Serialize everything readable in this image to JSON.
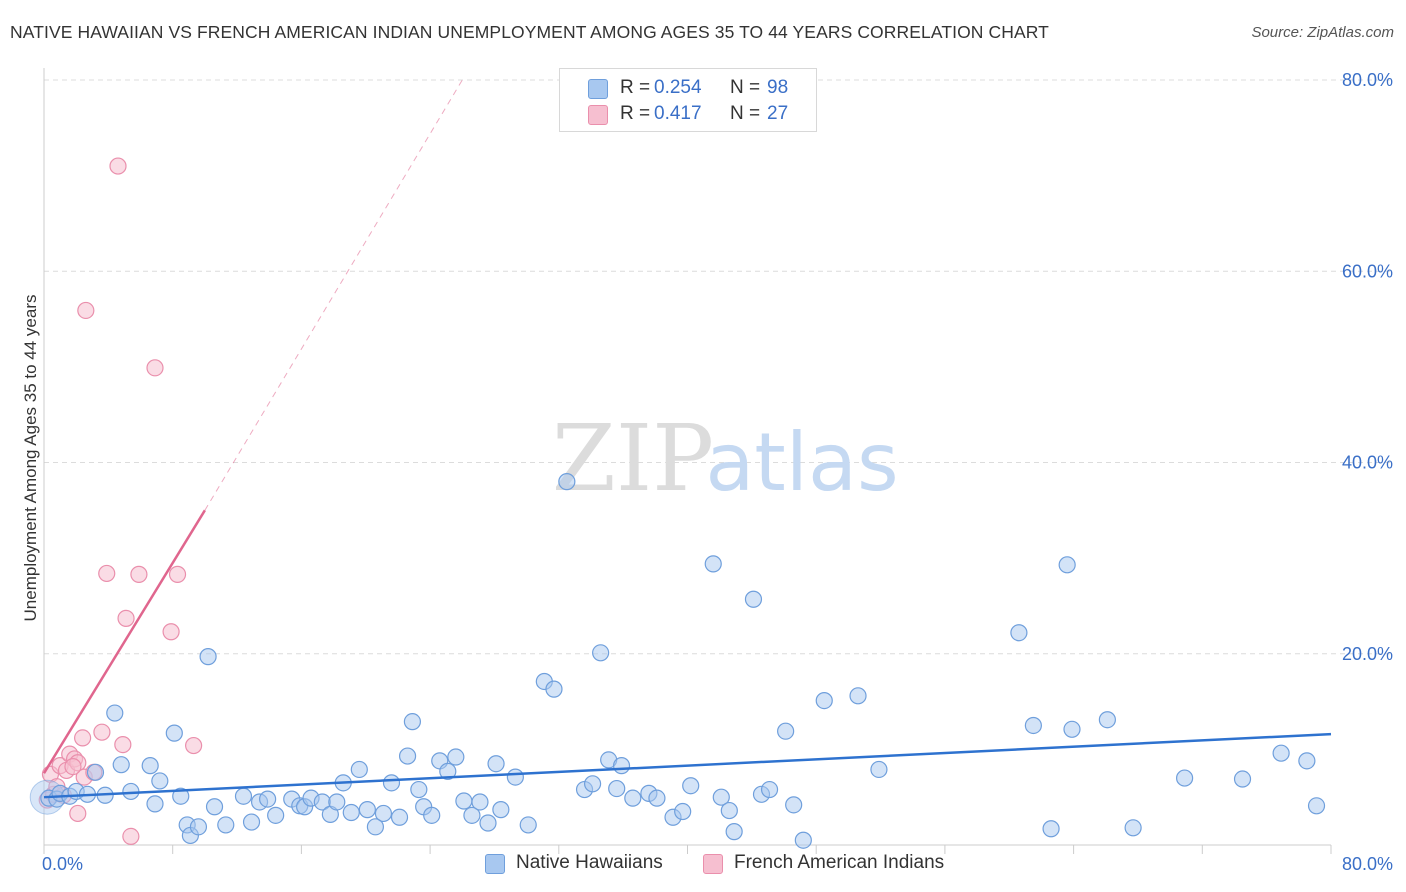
{
  "title": "NATIVE HAWAIIAN VS FRENCH AMERICAN INDIAN UNEMPLOYMENT AMONG AGES 35 TO 44 YEARS CORRELATION CHART",
  "source": "Source: ZipAtlas.com",
  "watermark": {
    "zip": "ZIP",
    "atlas": "atlas"
  },
  "legend": {
    "rows": [
      {
        "r_label": "R =",
        "r_value": "0.254",
        "n_label": "N =",
        "n_value": "98"
      },
      {
        "r_label": "R =",
        "r_value": "0.417",
        "n_label": "N =",
        "n_value": "27"
      }
    ]
  },
  "bottom_legend": {
    "series1": "Native Hawaiians",
    "series2": "French American Indians"
  },
  "colors": {
    "blue_fill": "#a8c8f0",
    "blue_stroke": "#6f9fdc",
    "blue_line": "#2e72cf",
    "pink_fill": "#f6bfd0",
    "pink_stroke": "#ea8fac",
    "pink_line": "#e0668e",
    "tick_label": "#3a6fc7",
    "grid": "#dcdcdc"
  },
  "chart_data": {
    "type": "scatter",
    "title": "NATIVE HAWAIIAN VS FRENCH AMERICAN INDIAN UNEMPLOYMENT AMONG AGES 35 TO 44 YEARS CORRELATION CHART",
    "xlabel": "",
    "ylabel": "Unemployment Among Ages 35 to 44 years",
    "xlim": [
      0,
      80
    ],
    "ylim": [
      0,
      80
    ],
    "x_tick_labels": [
      "0.0%",
      "80.0%"
    ],
    "y_ticks": [
      20,
      40,
      60,
      80
    ],
    "y_tick_labels": [
      "20.0%",
      "40.0%",
      "60.0%",
      "80.0%"
    ],
    "series": [
      {
        "name": "Native Hawaiians",
        "r": 0.254,
        "n": 98,
        "trend": {
          "x0": 0,
          "y0": 5.0,
          "x1": 80,
          "y1": 11.6
        },
        "points": [
          [
            0.3,
            4.9
          ],
          [
            0.8,
            4.8
          ],
          [
            1.0,
            5.4
          ],
          [
            1.6,
            5.1
          ],
          [
            2.0,
            5.6
          ],
          [
            2.7,
            5.3
          ],
          [
            3.2,
            7.6
          ],
          [
            3.8,
            5.2
          ],
          [
            4.4,
            13.8
          ],
          [
            4.8,
            8.4
          ],
          [
            5.4,
            5.6
          ],
          [
            6.6,
            8.3
          ],
          [
            6.9,
            4.3
          ],
          [
            7.2,
            6.7
          ],
          [
            8.1,
            11.7
          ],
          [
            8.5,
            5.1
          ],
          [
            8.9,
            2.1
          ],
          [
            9.1,
            1.0
          ],
          [
            9.6,
            1.9
          ],
          [
            10.2,
            19.7
          ],
          [
            10.6,
            4.0
          ],
          [
            11.3,
            2.1
          ],
          [
            12.4,
            5.1
          ],
          [
            12.9,
            2.4
          ],
          [
            13.4,
            4.5
          ],
          [
            13.9,
            4.8
          ],
          [
            14.4,
            3.1
          ],
          [
            15.4,
            4.8
          ],
          [
            15.9,
            4.1
          ],
          [
            16.2,
            4.0
          ],
          [
            16.6,
            4.9
          ],
          [
            17.3,
            4.5
          ],
          [
            17.8,
            3.2
          ],
          [
            18.2,
            4.5
          ],
          [
            18.6,
            6.5
          ],
          [
            19.1,
            3.4
          ],
          [
            19.6,
            7.9
          ],
          [
            20.1,
            3.7
          ],
          [
            20.6,
            1.9
          ],
          [
            21.1,
            3.3
          ],
          [
            21.6,
            6.5
          ],
          [
            22.1,
            2.9
          ],
          [
            22.6,
            9.3
          ],
          [
            22.9,
            12.9
          ],
          [
            23.3,
            5.8
          ],
          [
            23.6,
            4.0
          ],
          [
            24.1,
            3.1
          ],
          [
            24.6,
            8.8
          ],
          [
            25.1,
            7.7
          ],
          [
            25.6,
            9.2
          ],
          [
            26.1,
            4.6
          ],
          [
            26.6,
            3.1
          ],
          [
            27.1,
            4.5
          ],
          [
            27.6,
            2.3
          ],
          [
            28.1,
            8.5
          ],
          [
            28.4,
            3.7
          ],
          [
            29.3,
            7.1
          ],
          [
            30.1,
            2.1
          ],
          [
            31.1,
            17.1
          ],
          [
            31.7,
            16.3
          ],
          [
            32.5,
            38.0
          ],
          [
            33.6,
            5.8
          ],
          [
            34.1,
            6.4
          ],
          [
            34.6,
            20.1
          ],
          [
            35.1,
            8.9
          ],
          [
            35.6,
            5.9
          ],
          [
            35.9,
            8.3
          ],
          [
            36.6,
            4.9
          ],
          [
            37.6,
            5.4
          ],
          [
            38.1,
            4.9
          ],
          [
            39.1,
            2.9
          ],
          [
            39.7,
            3.5
          ],
          [
            40.2,
            6.2
          ],
          [
            41.6,
            29.4
          ],
          [
            42.1,
            5.0
          ],
          [
            42.6,
            3.6
          ],
          [
            42.9,
            1.4
          ],
          [
            44.1,
            25.7
          ],
          [
            44.6,
            5.3
          ],
          [
            45.1,
            5.8
          ],
          [
            46.1,
            11.9
          ],
          [
            46.6,
            4.2
          ],
          [
            47.2,
            0.5
          ],
          [
            48.5,
            15.1
          ],
          [
            50.6,
            15.6
          ],
          [
            51.9,
            7.9
          ],
          [
            60.6,
            22.2
          ],
          [
            61.5,
            12.5
          ],
          [
            62.6,
            1.7
          ],
          [
            63.6,
            29.3
          ],
          [
            63.9,
            12.1
          ],
          [
            66.1,
            13.1
          ],
          [
            67.7,
            1.8
          ],
          [
            70.9,
            7.0
          ],
          [
            74.5,
            6.9
          ],
          [
            76.9,
            9.6
          ],
          [
            78.5,
            8.8
          ],
          [
            79.1,
            4.1
          ]
        ]
      },
      {
        "name": "French American Indians",
        "r": 0.417,
        "n": 27,
        "trend": {
          "x0": 0,
          "y0": 7.5,
          "x1": 10,
          "y1": 35.0
        },
        "trend_extension": {
          "x0": 10,
          "y0": 35.0,
          "x1": 26,
          "y1": 80.0
        },
        "points": [
          [
            0.2,
            4.7
          ],
          [
            0.4,
            7.4
          ],
          [
            0.6,
            5.3
          ],
          [
            1.0,
            8.3
          ],
          [
            1.4,
            7.8
          ],
          [
            1.6,
            9.5
          ],
          [
            1.9,
            9.0
          ],
          [
            2.1,
            8.6
          ],
          [
            2.4,
            11.2
          ],
          [
            2.5,
            7.1
          ],
          [
            2.1,
            3.3
          ],
          [
            2.6,
            55.9
          ],
          [
            3.1,
            7.6
          ],
          [
            3.6,
            11.8
          ],
          [
            3.9,
            28.4
          ],
          [
            4.6,
            71.0
          ],
          [
            4.9,
            10.5
          ],
          [
            5.1,
            23.7
          ],
          [
            5.4,
            0.9
          ],
          [
            5.9,
            28.3
          ],
          [
            6.9,
            49.9
          ],
          [
            7.9,
            22.3
          ],
          [
            8.3,
            28.3
          ],
          [
            9.3,
            10.4
          ],
          [
            1.2,
            5.2
          ],
          [
            0.8,
            6.1
          ],
          [
            1.8,
            8.2
          ]
        ]
      }
    ]
  }
}
